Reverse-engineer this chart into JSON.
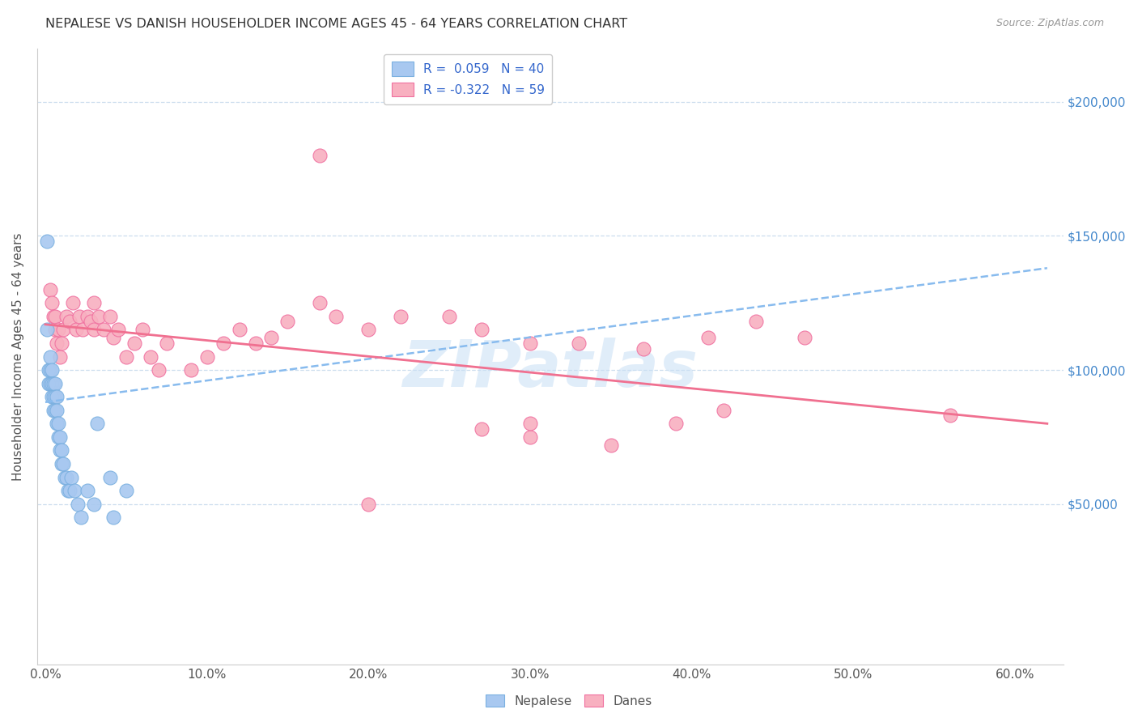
{
  "title": "NEPALESE VS DANISH HOUSEHOLDER INCOME AGES 45 - 64 YEARS CORRELATION CHART",
  "source": "Source: ZipAtlas.com",
  "ylabel": "Householder Income Ages 45 - 64 years",
  "xlabel_ticks": [
    "0.0%",
    "10.0%",
    "20.0%",
    "30.0%",
    "40.0%",
    "50.0%",
    "60.0%"
  ],
  "xlabel_vals": [
    0.0,
    0.1,
    0.2,
    0.3,
    0.4,
    0.5,
    0.6
  ],
  "ytick_labels": [
    "$50,000",
    "$100,000",
    "$150,000",
    "$200,000"
  ],
  "ytick_vals": [
    50000,
    100000,
    150000,
    200000
  ],
  "xlim": [
    -0.005,
    0.63
  ],
  "ylim": [
    -10000,
    220000
  ],
  "nepalese_color": "#a8c8f0",
  "danes_color": "#f8b0c0",
  "nepalese_edge_color": "#7ab0e0",
  "danes_edge_color": "#f070a0",
  "nepalese_line_color": "#88bbee",
  "danes_line_color": "#f07090",
  "watermark": "ZIPatlas",
  "nepalese_x": [
    0.001,
    0.001,
    0.002,
    0.002,
    0.003,
    0.003,
    0.003,
    0.004,
    0.004,
    0.004,
    0.005,
    0.005,
    0.005,
    0.006,
    0.006,
    0.006,
    0.007,
    0.007,
    0.007,
    0.008,
    0.008,
    0.009,
    0.009,
    0.01,
    0.01,
    0.011,
    0.012,
    0.013,
    0.014,
    0.015,
    0.016,
    0.018,
    0.02,
    0.022,
    0.026,
    0.03,
    0.032,
    0.04,
    0.042,
    0.05
  ],
  "nepalese_y": [
    148000,
    115000,
    95000,
    100000,
    100000,
    105000,
    95000,
    100000,
    90000,
    95000,
    95000,
    90000,
    85000,
    95000,
    90000,
    85000,
    90000,
    85000,
    80000,
    80000,
    75000,
    75000,
    70000,
    70000,
    65000,
    65000,
    60000,
    60000,
    55000,
    55000,
    60000,
    55000,
    50000,
    45000,
    55000,
    50000,
    80000,
    60000,
    45000,
    55000
  ],
  "danes_x": [
    0.003,
    0.004,
    0.005,
    0.006,
    0.006,
    0.007,
    0.008,
    0.009,
    0.01,
    0.011,
    0.013,
    0.015,
    0.017,
    0.019,
    0.021,
    0.023,
    0.026,
    0.028,
    0.03,
    0.03,
    0.033,
    0.036,
    0.04,
    0.042,
    0.045,
    0.05,
    0.055,
    0.06,
    0.065,
    0.07,
    0.075,
    0.09,
    0.1,
    0.11,
    0.12,
    0.13,
    0.14,
    0.15,
    0.17,
    0.18,
    0.2,
    0.22,
    0.25,
    0.27,
    0.3,
    0.33,
    0.37,
    0.41,
    0.44,
    0.47,
    0.3,
    0.35,
    0.39,
    0.42,
    0.2,
    0.17,
    0.56,
    0.3,
    0.27
  ],
  "danes_y": [
    130000,
    125000,
    120000,
    115000,
    120000,
    110000,
    115000,
    105000,
    110000,
    115000,
    120000,
    118000,
    125000,
    115000,
    120000,
    115000,
    120000,
    118000,
    115000,
    125000,
    120000,
    115000,
    120000,
    112000,
    115000,
    105000,
    110000,
    115000,
    105000,
    100000,
    110000,
    100000,
    105000,
    110000,
    115000,
    110000,
    112000,
    118000,
    125000,
    120000,
    115000,
    120000,
    120000,
    115000,
    110000,
    110000,
    108000,
    112000,
    118000,
    112000,
    75000,
    72000,
    80000,
    85000,
    50000,
    180000,
    83000,
    80000,
    78000
  ],
  "nep_trend_x0": 0.0,
  "nep_trend_x1": 0.62,
  "nep_trend_y0": 88000,
  "nep_trend_y1": 138000,
  "dan_trend_x0": 0.0,
  "dan_trend_x1": 0.62,
  "dan_trend_y0": 117000,
  "dan_trend_y1": 80000
}
